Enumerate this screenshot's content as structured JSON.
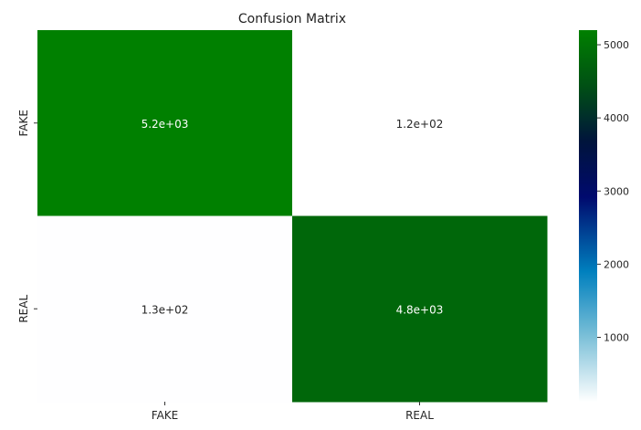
{
  "chart_data": {
    "type": "heatmap",
    "title": "Confusion Matrix",
    "x_categories": [
      "FAKE",
      "REAL"
    ],
    "y_categories": [
      "FAKE",
      "REAL"
    ],
    "values": [
      [
        5200,
        120
      ],
      [
        130,
        4800
      ]
    ],
    "annotations": [
      [
        "5.2e+03",
        "1.2e+02"
      ],
      [
        "1.3e+02",
        "4.8e+03"
      ]
    ],
    "colorbar": {
      "min": 120,
      "max": 5200,
      "ticks": [
        1000,
        2000,
        3000,
        4000,
        5000
      ],
      "tick_labels": [
        "1000",
        "2000",
        "3000",
        "4000",
        "5000"
      ],
      "colormap": "ocean_r",
      "position": "right"
    },
    "xlabel": "",
    "ylabel": "",
    "grid": false
  }
}
